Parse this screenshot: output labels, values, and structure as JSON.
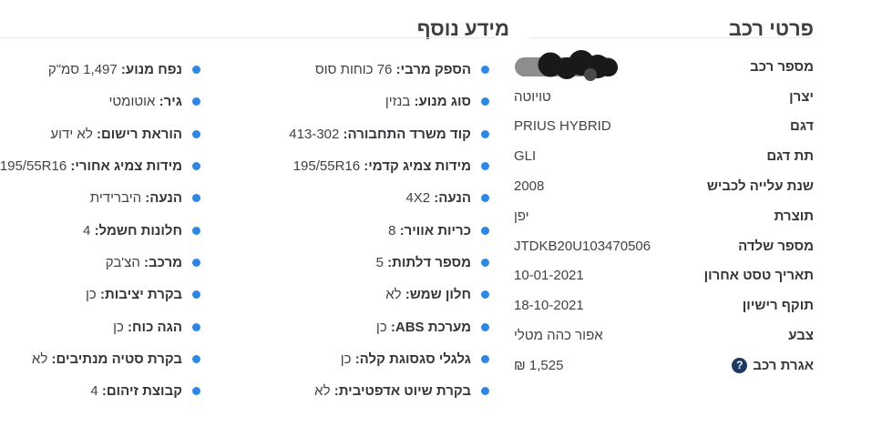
{
  "colors": {
    "accent_blue": "#2e88e3",
    "help_icon_bg": "#1d3a60",
    "divider": "#e6e6e6",
    "heading_text": "#3d4043",
    "label_text": "#33373a",
    "value_text": "#3f4347",
    "redaction_pill": "#8d8d8d",
    "redaction_scribble": "#191919"
  },
  "help_icon_glyph": "?",
  "vehicle_details": {
    "title": "פרטי רכב",
    "rows": [
      {
        "label": "מספר רכב",
        "value": "",
        "redacted": true
      },
      {
        "label": "יצרן",
        "value": "טויוטה"
      },
      {
        "label": "דגם",
        "value": "PRIUS HYBRID"
      },
      {
        "label": "תת דגם",
        "value": "GLI"
      },
      {
        "label": "שנת עלייה לכביש",
        "value": "2008"
      },
      {
        "label": "תוצרת",
        "value": "יפן"
      },
      {
        "label": "מספר שלדה",
        "value": "JTDKB20U103470506"
      },
      {
        "label": "תאריך טסט אחרון",
        "value": "10-01-2021"
      },
      {
        "label": "תוקף רישיון",
        "value": "18-10-2021"
      },
      {
        "label": "צבע",
        "value": "אפור כהה מטלי"
      },
      {
        "label": "אגרת רכב",
        "value": "1,525 ₪",
        "help_icon": true
      }
    ]
  },
  "additional_info": {
    "title": "מידע נוסף",
    "col1": [
      {
        "label": "הספק מרבי:",
        "value": "76 כוחות סוס"
      },
      {
        "label": "סוג מנוע:",
        "value": "בנזין"
      },
      {
        "label": "קוד משרד התחבורה:",
        "value": "413-302"
      },
      {
        "label": "מידות צמיג קדמי:",
        "value": "195/55R16"
      },
      {
        "label": "הנעה:",
        "value": "4X2"
      },
      {
        "label": "כריות אוויר:",
        "value": "8"
      },
      {
        "label": "מספר דלתות:",
        "value": "5"
      },
      {
        "label": "חלון שמש:",
        "value": "לא"
      },
      {
        "label": "מערכת ABS:",
        "value": "כן"
      },
      {
        "label": "גלגלי סגסוגת קלה:",
        "value": "כן"
      },
      {
        "label": "בקרת שיוט אדפטיבית:",
        "value": "לא"
      }
    ],
    "col2": [
      {
        "label": "נפח מנוע:",
        "value": "1,497 סמ\"ק"
      },
      {
        "label": "גיר:",
        "value": "אוטומטי"
      },
      {
        "label": "הוראת רישום:",
        "value": "לא ידוע"
      },
      {
        "label": "מידות צמיג אחורי:",
        "value": "195/55R16"
      },
      {
        "label": "הנעה:",
        "value": "היברידית"
      },
      {
        "label": "חלונות חשמל:",
        "value": "4"
      },
      {
        "label": "מרכב:",
        "value": "הצ'בק"
      },
      {
        "label": "בקרת יציבות:",
        "value": "כן"
      },
      {
        "label": "הגה כוח:",
        "value": "כן"
      },
      {
        "label": "בקרת סטיה מנתיבים:",
        "value": "לא"
      },
      {
        "label": "קבוצת זיהום:",
        "value": "4"
      }
    ]
  }
}
